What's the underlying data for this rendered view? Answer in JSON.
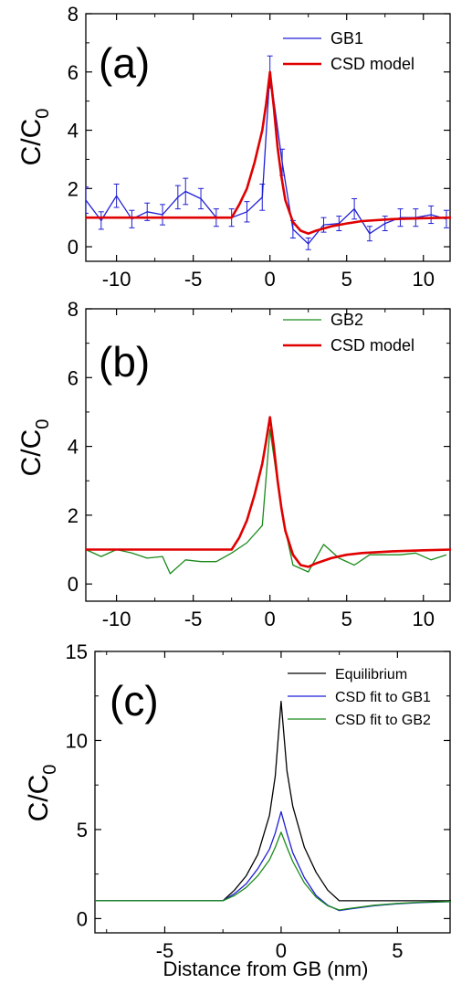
{
  "chart_data": [
    {
      "type": "line",
      "panel_label": "(a)",
      "xlabel": "",
      "ylabel": "C/C",
      "ylabel_sub": "0",
      "xlim": [
        -12,
        11.8
      ],
      "ylim": [
        -0.5,
        8
      ],
      "xticks": [
        -10,
        -5,
        0,
        5,
        10
      ],
      "xtick_labels": [
        "-10",
        "-5",
        "0",
        "5",
        "10"
      ],
      "yticks": [
        0,
        2,
        4,
        6,
        8
      ],
      "ytick_labels": [
        "0",
        "2",
        "4",
        "6",
        "8"
      ],
      "legend_position": "top-right",
      "series": [
        {
          "name": "GB1",
          "color": "#1f1fd6",
          "x": [
            -12,
            -11,
            -10,
            -9,
            -8,
            -7,
            -6,
            -5.5,
            -4.5,
            -3.5,
            -2.5,
            -1.5,
            -0.5,
            0,
            0.8,
            1.5,
            2.5,
            3.5,
            4.5,
            5.5,
            6.5,
            7.5,
            8.5,
            9.5,
            10.5,
            11.5
          ],
          "y": [
            1.6,
            0.9,
            1.75,
            0.95,
            1.2,
            1.1,
            1.7,
            1.9,
            1.65,
            1.0,
            1.0,
            1.2,
            1.7,
            6.0,
            2.9,
            0.6,
            0.1,
            0.75,
            0.8,
            1.3,
            0.45,
            0.8,
            1.0,
            1.0,
            1.1,
            0.95
          ],
          "yerr": [
            0.45,
            0.3,
            0.4,
            0.3,
            0.3,
            0.35,
            0.4,
            0.45,
            0.35,
            0.3,
            0.3,
            0.35,
            0.45,
            0.55,
            0.45,
            0.3,
            0.2,
            0.25,
            0.25,
            0.35,
            0.25,
            0.25,
            0.3,
            0.3,
            0.3,
            0.3
          ]
        },
        {
          "name": "CSD model",
          "color": "#e00000",
          "x": [
            -12,
            -2.5,
            -2.0,
            -1.5,
            -1.0,
            -0.5,
            -0.25,
            0,
            0.25,
            0.5,
            0.75,
            1.0,
            1.5,
            2.0,
            2.5,
            3.0,
            4.0,
            5.0,
            6.0,
            8.0,
            10.0,
            11.8
          ],
          "y": [
            1.0,
            1.0,
            1.45,
            2.0,
            2.9,
            4.0,
            4.9,
            6.0,
            4.8,
            3.4,
            2.4,
            1.6,
            0.85,
            0.55,
            0.45,
            0.55,
            0.7,
            0.8,
            0.88,
            0.95,
            0.98,
            1.0
          ]
        }
      ]
    },
    {
      "type": "line",
      "panel_label": "(b)",
      "xlabel": "",
      "ylabel": "C/C",
      "ylabel_sub": "0",
      "xlim": [
        -12,
        11.8
      ],
      "ylim": [
        -0.5,
        8
      ],
      "xticks": [
        -10,
        -5,
        0,
        5,
        10
      ],
      "xtick_labels": [
        "-10",
        "-5",
        "0",
        "5",
        "10"
      ],
      "yticks": [
        0,
        2,
        4,
        6,
        8
      ],
      "ytick_labels": [
        "0",
        "2",
        "4",
        "6",
        "8"
      ],
      "legend_position": "top-right",
      "series": [
        {
          "name": "GB2",
          "color": "#1a8a1a",
          "x": [
            -12,
            -11,
            -10,
            -9,
            -8,
            -7,
            -6.5,
            -5.5,
            -4.5,
            -3.5,
            -2.5,
            -1.5,
            -0.5,
            0,
            0.8,
            1.5,
            2.5,
            3.5,
            4.5,
            5.5,
            6.5,
            7.5,
            8.5,
            9.5,
            10.5,
            11.5
          ],
          "y": [
            1.0,
            0.8,
            1.0,
            0.9,
            0.75,
            0.8,
            0.3,
            0.7,
            0.65,
            0.65,
            0.9,
            1.2,
            1.7,
            4.5,
            2.0,
            0.55,
            0.35,
            1.15,
            0.75,
            0.55,
            0.85,
            0.85,
            0.85,
            0.9,
            0.7,
            0.85
          ]
        },
        {
          "name": "CSD model",
          "color": "#e00000",
          "x": [
            -12,
            -2.5,
            -2.0,
            -1.5,
            -1.0,
            -0.5,
            -0.25,
            0,
            0.25,
            0.5,
            0.75,
            1.0,
            1.5,
            2.0,
            2.5,
            3.0,
            4.0,
            5.0,
            6.0,
            8.0,
            10.0,
            11.8
          ],
          "y": [
            1.0,
            1.0,
            1.35,
            1.85,
            2.6,
            3.5,
            4.15,
            4.85,
            4.0,
            3.0,
            2.2,
            1.55,
            0.85,
            0.55,
            0.5,
            0.6,
            0.75,
            0.85,
            0.9,
            0.95,
            0.98,
            1.0
          ]
        }
      ]
    },
    {
      "type": "line",
      "panel_label": "(c)",
      "xlabel": "Distance from GB (nm)",
      "ylabel": "C/C",
      "ylabel_sub": "0",
      "xlim": [
        -8,
        7.3
      ],
      "ylim": [
        -0.8,
        15
      ],
      "xticks": [
        -5,
        0,
        5
      ],
      "xtick_labels": [
        "-5",
        "0",
        "5"
      ],
      "yticks": [
        0,
        5,
        10,
        15
      ],
      "ytick_labels": [
        "0",
        "5",
        "10",
        "15"
      ],
      "legend_position": "top-right",
      "series": [
        {
          "name": "Equilibrium",
          "color": "#000000",
          "x": [
            -8,
            -2.5,
            -2.0,
            -1.5,
            -1.0,
            -0.5,
            -0.25,
            0,
            0.25,
            0.5,
            1.0,
            1.5,
            2.0,
            2.5,
            3.0,
            5.0,
            7.3
          ],
          "y": [
            1.0,
            1.0,
            1.6,
            2.4,
            3.6,
            5.8,
            8.0,
            12.2,
            8.3,
            6.3,
            4.0,
            2.6,
            1.6,
            1.0,
            1.0,
            1.0,
            1.0
          ]
        },
        {
          "name": "CSD fit to GB1",
          "color": "#1f1fd6",
          "x": [
            -8,
            -2.5,
            -2.0,
            -1.5,
            -1.0,
            -0.5,
            -0.25,
            0,
            0.25,
            0.5,
            1.0,
            1.5,
            2.0,
            2.5,
            3.0,
            4.0,
            5.0,
            6.0,
            7.3
          ],
          "y": [
            1.0,
            1.0,
            1.4,
            1.95,
            2.8,
            3.9,
            4.8,
            6.0,
            4.8,
            3.7,
            2.3,
            1.3,
            0.75,
            0.45,
            0.55,
            0.72,
            0.83,
            0.9,
            0.95
          ]
        },
        {
          "name": "CSD fit to GB2",
          "color": "#1a8a1a",
          "x": [
            -8,
            -2.5,
            -2.0,
            -1.5,
            -1.0,
            -0.5,
            -0.25,
            0,
            0.25,
            0.5,
            1.0,
            1.5,
            2.0,
            2.5,
            3.0,
            4.0,
            5.0,
            6.0,
            7.3
          ],
          "y": [
            1.0,
            1.0,
            1.3,
            1.75,
            2.4,
            3.3,
            4.0,
            4.85,
            4.0,
            3.2,
            2.0,
            1.2,
            0.72,
            0.48,
            0.58,
            0.75,
            0.85,
            0.92,
            0.96
          ]
        }
      ]
    }
  ]
}
